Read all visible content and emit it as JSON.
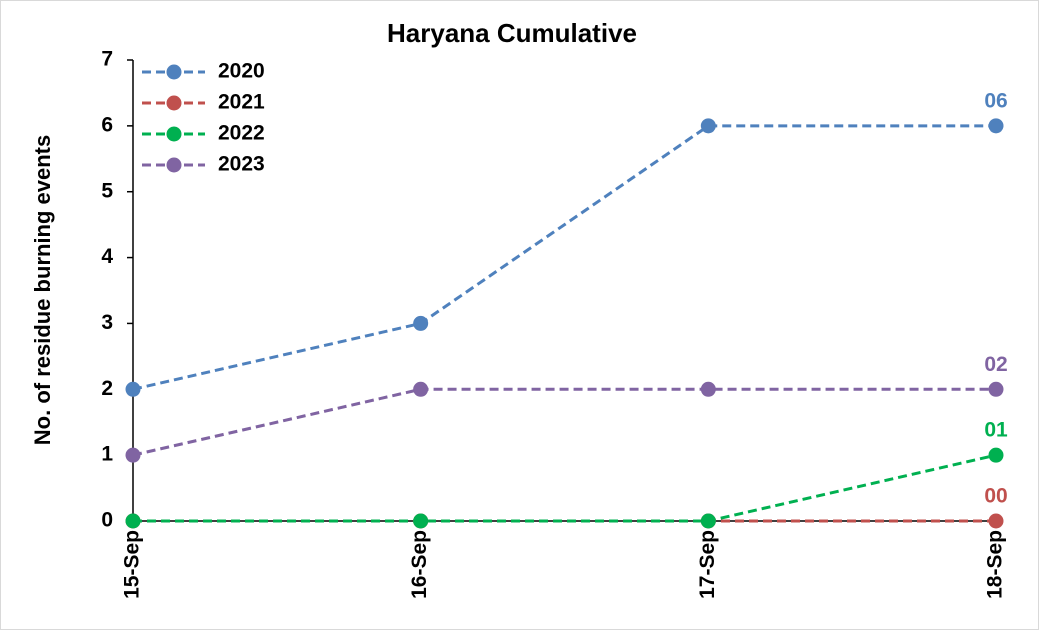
{
  "chart_data": {
    "type": "line",
    "title": "Haryana Cumulative",
    "y_label": "No. of residue burning events",
    "categories": [
      "15-Sep",
      "16-Sep",
      "17-Sep",
      "18-Sep"
    ],
    "series": [
      {
        "name": "2020",
        "color": "#4f81bd",
        "values": [
          2,
          3,
          6,
          6
        ],
        "value_labels": [
          null,
          null,
          null,
          "06"
        ]
      },
      {
        "name": "2021",
        "color": "#c0504d",
        "values": [
          0,
          0,
          0,
          0
        ],
        "value_labels": [
          null,
          null,
          null,
          "00"
        ]
      },
      {
        "name": "2022",
        "color": "#00b050",
        "values": [
          0,
          0,
          0,
          1
        ],
        "value_labels": [
          null,
          null,
          null,
          "01"
        ]
      },
      {
        "name": "2023",
        "color": "#8064a2",
        "values": [
          1,
          2,
          2,
          2
        ],
        "value_labels": [
          null,
          null,
          null,
          "02"
        ]
      }
    ],
    "ylim": [
      0,
      7
    ],
    "yticks": [
      0,
      1,
      2,
      3,
      4,
      5,
      6,
      7
    ],
    "grid": false,
    "legend": "top-left"
  }
}
